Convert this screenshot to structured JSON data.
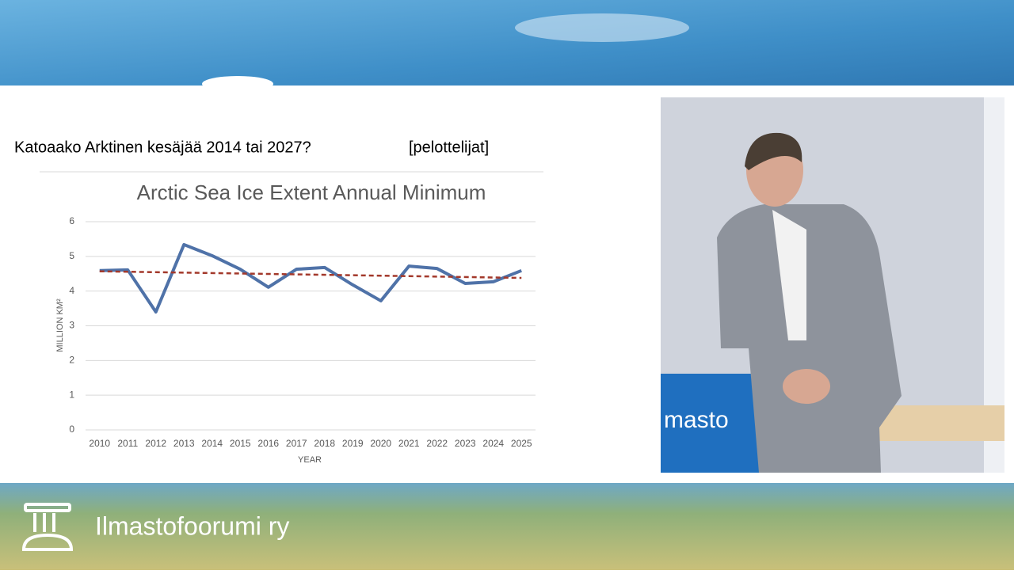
{
  "slide_title": "Katoaako Arktinen kesäjää 2014 tai 2027?",
  "slide_tag": "[pelottelijat]",
  "footer_text": "Ilmastofoorumi ry",
  "video_sign_text": "masto",
  "chart_data": {
    "type": "line",
    "title": "Arctic Sea Ice Extent Annual Minimum",
    "x_label": "YEAR",
    "y_label": "MILLION KM²",
    "categories": [
      "2010",
      "2011",
      "2012",
      "2013",
      "2014",
      "2015",
      "2016",
      "2017",
      "2018",
      "2019",
      "2020",
      "2021",
      "2022",
      "2023",
      "2024",
      "2025"
    ],
    "series": [
      {
        "color": "#4f72a8",
        "values": [
          4.59,
          4.61,
          3.4,
          5.34,
          5.02,
          4.63,
          4.11,
          4.63,
          4.68,
          4.18,
          3.72,
          4.72,
          4.65,
          4.22,
          4.27,
          4.59
        ]
      }
    ],
    "trendline": {
      "color": "#a3392b",
      "values": [
        4.57,
        4.38
      ]
    },
    "ylim": [
      0,
      6
    ],
    "yticks": [
      0,
      1,
      2,
      3,
      4,
      5,
      6
    ],
    "grid": true
  }
}
